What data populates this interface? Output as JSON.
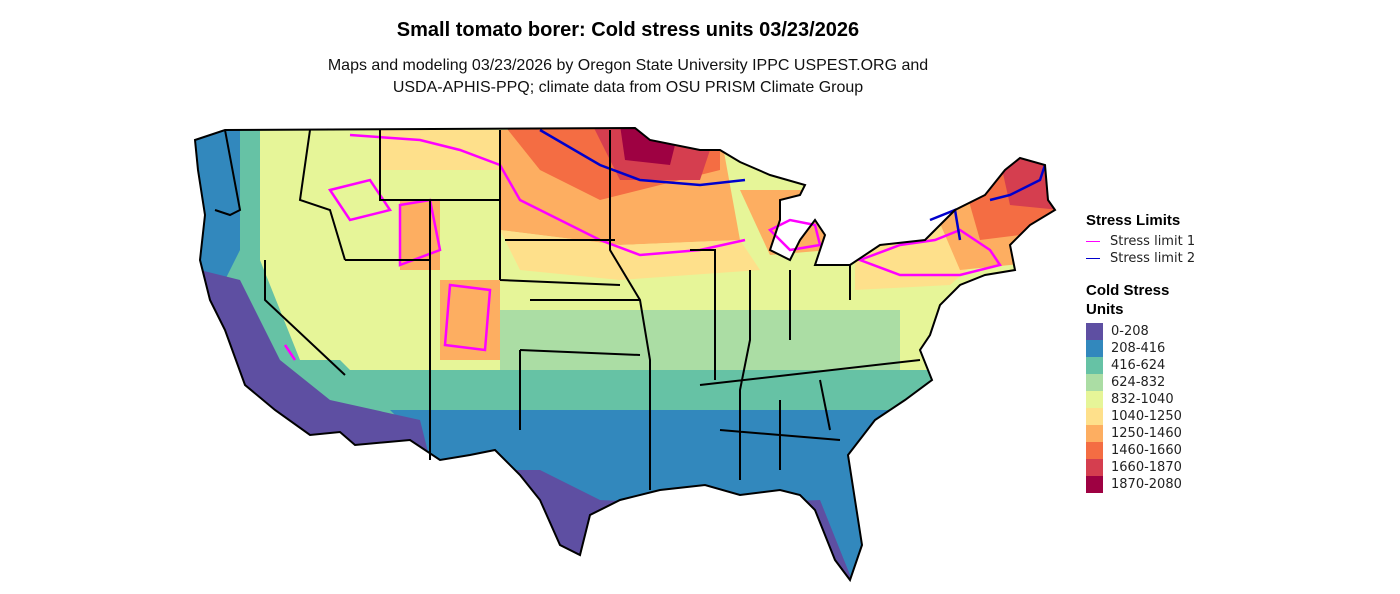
{
  "title": "Small tomato borer: Cold stress units 03/23/2026",
  "subtitle_line1": "Maps and modeling 03/23/2026 by Oregon State University IPPC USPEST.ORG and",
  "subtitle_line2": "USDA-APHIS-PPQ; climate data from OSU PRISM Climate Group",
  "legend": {
    "stress_title": "Stress Limits",
    "stress_limits": [
      {
        "label": "Stress limit 1",
        "color": "#FF00FF"
      },
      {
        "label": "Stress limit 2",
        "color": "#0000CC"
      }
    ],
    "csu_title_1": "Cold Stress",
    "csu_title_2": "Units",
    "classes": [
      {
        "label": "0-208",
        "color": "#5E4FA2"
      },
      {
        "label": "208-416",
        "color": "#3288BD"
      },
      {
        "label": "416-624",
        "color": "#66C2A5"
      },
      {
        "label": "624-832",
        "color": "#ABDDA4"
      },
      {
        "label": "832-1040",
        "color": "#E6F598"
      },
      {
        "label": "1040-1250",
        "color": "#FEE08B"
      },
      {
        "label": "1250-1460",
        "color": "#FDAE61"
      },
      {
        "label": "1460-1660",
        "color": "#F46D43"
      },
      {
        "label": "1660-1870",
        "color": "#D53E4F"
      },
      {
        "label": "1870-2080",
        "color": "#9E0142"
      }
    ]
  }
}
